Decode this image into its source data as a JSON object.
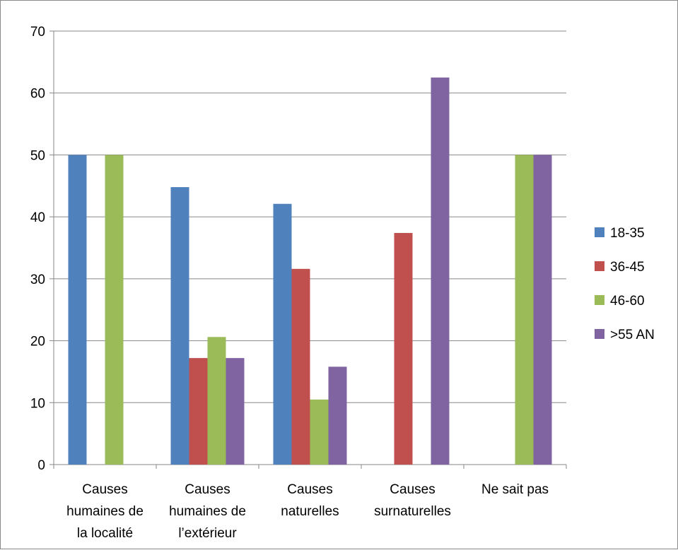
{
  "chart_data": {
    "type": "bar",
    "title": "",
    "xlabel": "",
    "ylabel": "",
    "ylim": [
      0,
      70
    ],
    "ytick_step": 10,
    "grid": true,
    "legend_position": "right",
    "categories": [
      [
        "Causes",
        "humaines de",
        "la localité"
      ],
      [
        "Causes",
        "humaines de",
        "l’extérieur"
      ],
      [
        "Causes",
        "naturelles"
      ],
      [
        "Causes",
        "surnaturelles"
      ],
      [
        "Ne sait pas"
      ]
    ],
    "series": [
      {
        "name": "18-35",
        "color": "#4f81bd",
        "values": [
          50,
          44.8,
          42.1,
          0,
          0
        ]
      },
      {
        "name": "36-45",
        "color": "#c0504d",
        "values": [
          0,
          17.2,
          31.6,
          37.4,
          0
        ]
      },
      {
        "name": "46-60",
        "color": "#9bbb59",
        "values": [
          50,
          20.6,
          10.5,
          0,
          50
        ]
      },
      {
        "name": ">55 AN",
        "color": "#8064a2",
        "values": [
          0,
          17.2,
          15.8,
          62.5,
          50
        ]
      }
    ]
  }
}
